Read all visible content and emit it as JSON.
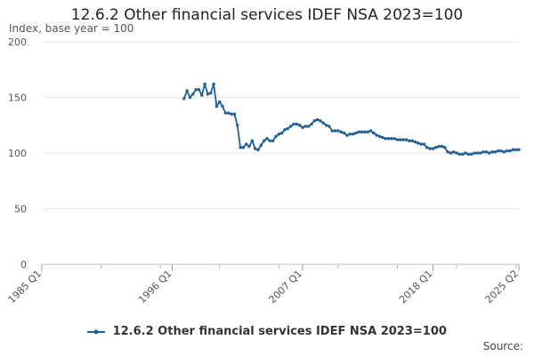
{
  "chart_data": {
    "type": "line",
    "title": "12.6.2 Other financial services IDEF NSA 2023=100",
    "ylabel": "Index, base year = 100",
    "xlabel": "",
    "ylim": [
      0,
      200
    ],
    "yticks": [
      0,
      50,
      100,
      150,
      200
    ],
    "xtick_labels": [
      "1985 Q1",
      "1996 Q1",
      "2007 Q1",
      "2018 Q1",
      "2025 Q2"
    ],
    "x_range": [
      "1985 Q1",
      "2025 Q2"
    ],
    "grid": "horizontal",
    "legend_position": "bottom",
    "series": [
      {
        "name": "12.6.2 Other financial services IDEF NSA 2023=100",
        "color": "#206095",
        "marker": "circle",
        "points": [
          [
            "1997 Q1",
            149
          ],
          [
            "1997 Q2",
            156
          ],
          [
            "1997 Q3",
            150
          ],
          [
            "1997 Q4",
            153
          ],
          [
            "1998 Q1",
            157
          ],
          [
            "1998 Q2",
            157
          ],
          [
            "1998 Q3",
            152
          ],
          [
            "1998 Q4",
            162
          ],
          [
            "1999 Q1",
            153
          ],
          [
            "1999 Q2",
            154
          ],
          [
            "1999 Q3",
            162
          ],
          [
            "1999 Q4",
            142
          ],
          [
            "2000 Q1",
            146
          ],
          [
            "2000 Q2",
            142
          ],
          [
            "2000 Q3",
            136
          ],
          [
            "2000 Q4",
            136
          ],
          [
            "2001 Q1",
            135
          ],
          [
            "2001 Q2",
            135
          ],
          [
            "2001 Q3",
            125
          ],
          [
            "2001 Q4",
            105
          ],
          [
            "2002 Q1",
            105
          ],
          [
            "2002 Q2",
            108
          ],
          [
            "2002 Q3",
            106
          ],
          [
            "2002 Q4",
            111
          ],
          [
            "2003 Q1",
            104
          ],
          [
            "2003 Q2",
            103
          ],
          [
            "2003 Q3",
            107
          ],
          [
            "2003 Q4",
            111
          ],
          [
            "2004 Q1",
            113
          ],
          [
            "2004 Q2",
            111
          ],
          [
            "2004 Q3",
            111
          ],
          [
            "2004 Q4",
            115
          ],
          [
            "2005 Q1",
            117
          ],
          [
            "2005 Q2",
            118
          ],
          [
            "2005 Q3",
            121
          ],
          [
            "2005 Q4",
            122
          ],
          [
            "2006 Q1",
            124
          ],
          [
            "2006 Q2",
            126
          ],
          [
            "2006 Q3",
            126
          ],
          [
            "2006 Q4",
            125
          ],
          [
            "2007 Q1",
            123
          ],
          [
            "2007 Q2",
            124
          ],
          [
            "2007 Q3",
            124
          ],
          [
            "2007 Q4",
            126
          ],
          [
            "2008 Q1",
            129
          ],
          [
            "2008 Q2",
            130
          ],
          [
            "2008 Q3",
            129
          ],
          [
            "2008 Q4",
            127
          ],
          [
            "2009 Q1",
            125
          ],
          [
            "2009 Q2",
            124
          ],
          [
            "2009 Q3",
            120
          ],
          [
            "2009 Q4",
            120
          ],
          [
            "2010 Q1",
            120
          ],
          [
            "2010 Q2",
            119
          ],
          [
            "2010 Q3",
            118
          ],
          [
            "2010 Q4",
            116
          ],
          [
            "2011 Q1",
            117
          ],
          [
            "2011 Q2",
            117
          ],
          [
            "2011 Q3",
            118
          ],
          [
            "2011 Q4",
            119
          ],
          [
            "2012 Q1",
            119
          ],
          [
            "2012 Q2",
            119
          ],
          [
            "2012 Q3",
            119
          ],
          [
            "2012 Q4",
            120
          ],
          [
            "2013 Q1",
            118
          ],
          [
            "2013 Q2",
            116
          ],
          [
            "2013 Q3",
            115
          ],
          [
            "2013 Q4",
            114
          ],
          [
            "2014 Q1",
            113
          ],
          [
            "2014 Q2",
            113
          ],
          [
            "2014 Q3",
            113
          ],
          [
            "2014 Q4",
            113
          ],
          [
            "2015 Q1",
            112
          ],
          [
            "2015 Q2",
            112
          ],
          [
            "2015 Q3",
            112
          ],
          [
            "2015 Q4",
            112
          ],
          [
            "2016 Q1",
            111
          ],
          [
            "2016 Q2",
            111
          ],
          [
            "2016 Q3",
            110
          ],
          [
            "2016 Q4",
            109
          ],
          [
            "2017 Q1",
            108
          ],
          [
            "2017 Q2",
            108
          ],
          [
            "2017 Q3",
            105
          ],
          [
            "2017 Q4",
            104
          ],
          [
            "2018 Q1",
            104
          ],
          [
            "2018 Q2",
            105
          ],
          [
            "2018 Q3",
            106
          ],
          [
            "2018 Q4",
            106
          ],
          [
            "2019 Q1",
            105
          ],
          [
            "2019 Q2",
            101
          ],
          [
            "2019 Q3",
            100
          ],
          [
            "2019 Q4",
            101
          ],
          [
            "2020 Q1",
            100
          ],
          [
            "2020 Q2",
            99
          ],
          [
            "2020 Q3",
            99
          ],
          [
            "2020 Q4",
            100
          ],
          [
            "2021 Q1",
            99
          ],
          [
            "2021 Q2",
            99
          ],
          [
            "2021 Q3",
            100
          ],
          [
            "2021 Q4",
            100
          ],
          [
            "2022 Q1",
            100
          ],
          [
            "2022 Q2",
            101
          ],
          [
            "2022 Q3",
            101
          ],
          [
            "2022 Q4",
            100
          ],
          [
            "2023 Q1",
            101
          ],
          [
            "2023 Q2",
            101
          ],
          [
            "2023 Q3",
            102
          ],
          [
            "2023 Q4",
            102
          ],
          [
            "2024 Q1",
            101
          ],
          [
            "2024 Q2",
            102
          ],
          [
            "2024 Q3",
            102
          ],
          [
            "2024 Q4",
            103
          ],
          [
            "2025 Q1",
            103
          ],
          [
            "2025 Q2",
            103
          ]
        ]
      }
    ]
  },
  "source_label": "Source:"
}
